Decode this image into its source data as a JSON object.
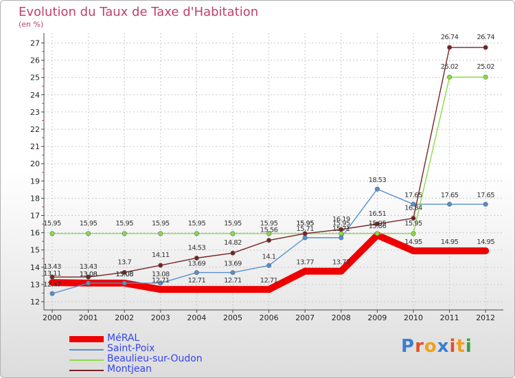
{
  "chart_data": {
    "type": "line",
    "title": "Evolution du Taux de Taxe d'Habitation",
    "subtitle": "(en %)",
    "categories": [
      "2000",
      "2001",
      "2002",
      "2003",
      "2004",
      "2005",
      "2006",
      "2007",
      "2008",
      "2009",
      "2010",
      "2011",
      "2012"
    ],
    "ylim": [
      12,
      27
    ],
    "yticks": [
      12,
      13,
      14,
      15,
      16,
      17,
      18,
      19,
      20,
      21,
      22,
      23,
      24,
      25,
      26,
      27
    ],
    "series": [
      {
        "name": "MéRAL",
        "color": "#ee0000",
        "values": [
          13.11,
          13.08,
          13.08,
          12.71,
          12.71,
          12.71,
          12.71,
          13.77,
          13.77,
          15.86,
          14.95,
          14.95,
          14.95
        ],
        "labels": [
          "13.11",
          "13.08",
          "13.08",
          "12.71",
          "12.71",
          "12.71",
          "12.71",
          "13.77",
          "13.77",
          "15.86",
          "14.95",
          "14.95",
          "14.95"
        ]
      },
      {
        "name": "Saint-Poix",
        "color": "#5590cc",
        "values": [
          12.47,
          13.08,
          13.08,
          13.08,
          13.69,
          13.69,
          14.1,
          15.71,
          15.71,
          18.53,
          17.65,
          17.65,
          17.65
        ],
        "labels": [
          "12.47",
          "13.08",
          "13.08",
          "13.08",
          "13.69",
          "13.69",
          "14.1",
          "15.71",
          "15.71",
          "18.53",
          "17.65",
          "17.65",
          "17.65"
        ]
      },
      {
        "name": "Beaulieu-sur-Oudon",
        "color": "#88dd44",
        "values": [
          15.95,
          15.95,
          15.95,
          15.95,
          15.95,
          15.95,
          15.95,
          15.95,
          15.95,
          15.95,
          15.95,
          25.02,
          25.02
        ],
        "labels": [
          "15.95",
          "15.95",
          "15.95",
          "15.95",
          "15.95",
          "15.95",
          "15.95",
          "15.95",
          "15.95",
          "15.95",
          "15.95",
          "25.02",
          "25.02"
        ]
      },
      {
        "name": "Montjean",
        "color": "#772222",
        "values": [
          13.43,
          13.43,
          13.7,
          14.11,
          14.53,
          14.82,
          15.56,
          15.95,
          16.19,
          16.51,
          16.84,
          26.74,
          26.74
        ],
        "labels": [
          "13.43",
          "13.43",
          "13.7",
          "14.11",
          "14.53",
          "14.82",
          "15.56",
          "15.95",
          "16.19",
          "16.51",
          "16.84",
          "26.74",
          "26.74"
        ]
      }
    ]
  },
  "legend": [
    "MéRAL",
    "Saint-Poix",
    "Beaulieu-sur-Oudon",
    "Montjean"
  ],
  "logo": {
    "text": "Proxiti",
    "letters": [
      "P",
      "r",
      "o",
      "x",
      "i",
      "t",
      "i"
    ],
    "colors": [
      "#3a7fd0",
      "#e0522a",
      "#f0a020",
      "#3a7fd0",
      "#e0522a",
      "#f0a020",
      "#3aa040"
    ]
  }
}
